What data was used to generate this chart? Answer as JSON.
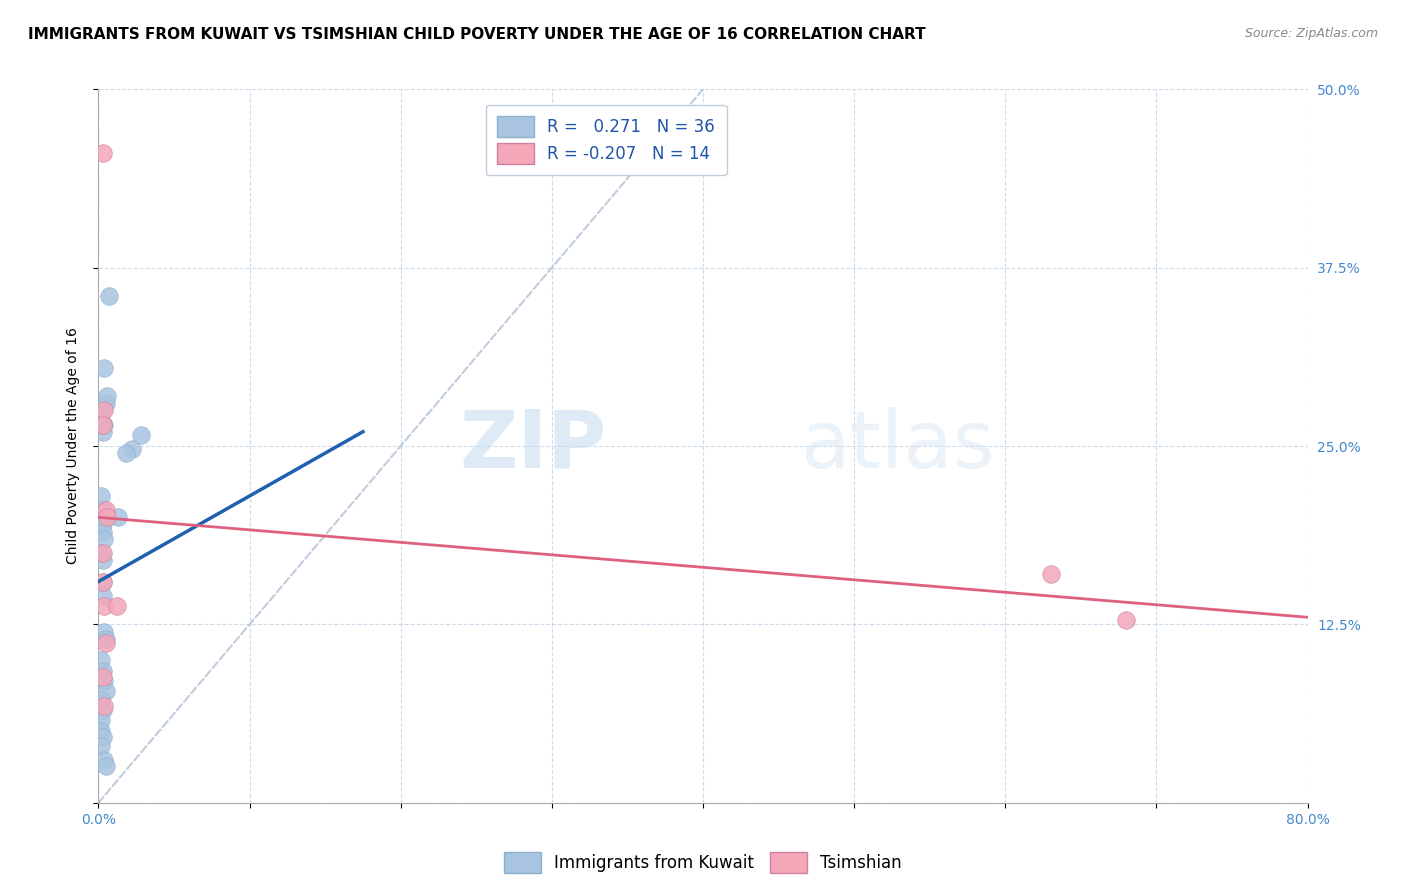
{
  "title": "IMMIGRANTS FROM KUWAIT VS TSIMSHIAN CHILD POVERTY UNDER THE AGE OF 16 CORRELATION CHART",
  "source": "Source: ZipAtlas.com",
  "ylabel": "Child Poverty Under the Age of 16",
  "xlim": [
    0.0,
    0.8
  ],
  "ylim": [
    0.0,
    0.5
  ],
  "xticks": [
    0.0,
    0.1,
    0.2,
    0.3,
    0.4,
    0.5,
    0.6,
    0.7,
    0.8
  ],
  "xticklabels": [
    "0.0%",
    "",
    "",
    "",
    "",
    "",
    "",
    "",
    "80.0%"
  ],
  "yticks": [
    0.0,
    0.125,
    0.25,
    0.375,
    0.5
  ],
  "yticklabels": [
    "",
    "12.5%",
    "25.0%",
    "37.5%",
    "50.0%"
  ],
  "blue_color": "#a8c4e0",
  "pink_color": "#f4a7b9",
  "blue_line_color": "#2060b0",
  "pink_line_color": "#e06080",
  "dashed_line_color": "#b8c8d8",
  "r_blue": 0.271,
  "n_blue": 36,
  "r_pink": -0.207,
  "n_pink": 14,
  "blue_points_x": [
    0.004,
    0.007,
    0.003,
    0.003,
    0.005,
    0.006,
    0.004,
    0.003,
    0.002,
    0.003,
    0.002,
    0.003,
    0.003,
    0.004,
    0.002,
    0.003,
    0.003,
    0.003,
    0.004,
    0.005,
    0.002,
    0.003,
    0.004,
    0.005,
    0.002,
    0.003,
    0.002,
    0.002,
    0.003,
    0.002,
    0.004,
    0.005,
    0.022,
    0.028,
    0.013,
    0.018
  ],
  "blue_points_y": [
    0.305,
    0.355,
    0.275,
    0.265,
    0.28,
    0.285,
    0.265,
    0.26,
    0.215,
    0.205,
    0.2,
    0.195,
    0.19,
    0.185,
    0.175,
    0.17,
    0.155,
    0.145,
    0.12,
    0.115,
    0.1,
    0.092,
    0.085,
    0.078,
    0.072,
    0.065,
    0.058,
    0.05,
    0.046,
    0.04,
    0.03,
    0.026,
    0.248,
    0.258,
    0.2,
    0.245
  ],
  "pink_points_x": [
    0.003,
    0.004,
    0.003,
    0.005,
    0.006,
    0.003,
    0.003,
    0.004,
    0.012,
    0.005,
    0.003,
    0.004,
    0.63,
    0.68
  ],
  "pink_points_y": [
    0.455,
    0.275,
    0.265,
    0.205,
    0.2,
    0.175,
    0.155,
    0.138,
    0.138,
    0.112,
    0.088,
    0.068,
    0.16,
    0.128
  ],
  "blue_line_x0": 0.0,
  "blue_line_y0": 0.155,
  "blue_line_x1": 0.175,
  "blue_line_y1": 0.26,
  "pink_line_x0": 0.0,
  "pink_line_y0": 0.2,
  "pink_line_x1": 0.8,
  "pink_line_y1": 0.13,
  "dash_line_x0": 0.0,
  "dash_line_y0": 0.0,
  "dash_line_x1": 0.4,
  "dash_line_y1": 0.5,
  "legend_label_blue": "Immigrants from Kuwait",
  "legend_label_pink": "Tsimshian",
  "watermark_zip": "ZIP",
  "watermark_atlas": "atlas",
  "title_fontsize": 11,
  "label_fontsize": 10,
  "tick_fontsize": 10,
  "legend_fontsize": 11
}
